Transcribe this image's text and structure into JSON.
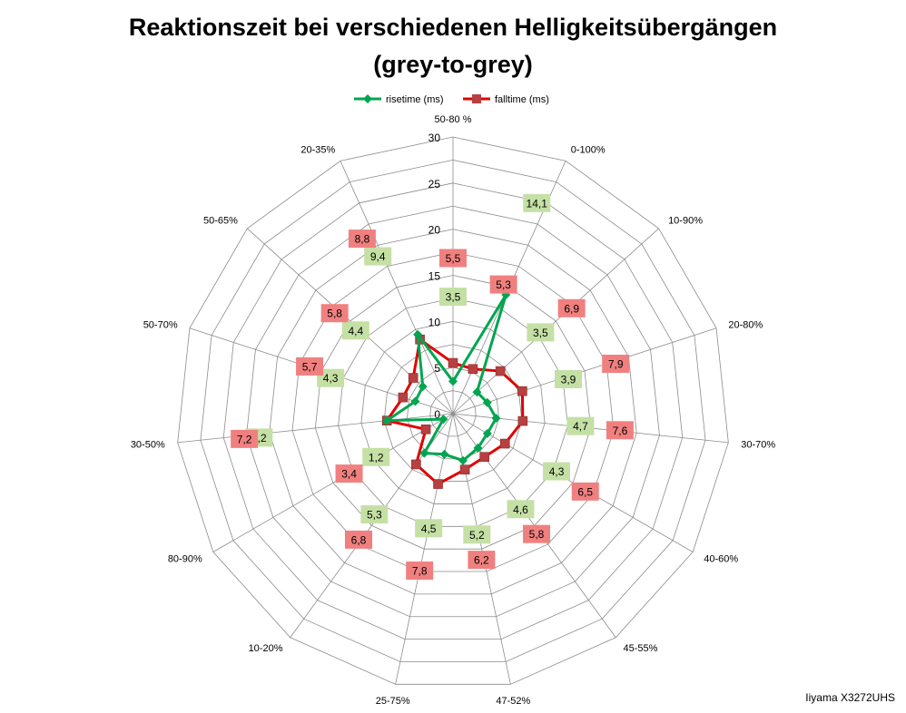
{
  "chart_data": {
    "type": "radar",
    "title": "Reaktionszeit bei verschiedenen Helligkeitsübergängen (grey-to-grey)",
    "title_line1": "Reaktionszeit bei verschiedenen Helligkeitsübergängen",
    "title_line2": "(grey-to-grey)",
    "categories": [
      "50-80 %",
      "0-100%",
      "10-90%",
      "20-80%",
      "30-70%",
      "40-60%",
      "45-55%",
      "47-52%",
      "25-75%",
      "10-20%",
      "80-90%",
      "30-50%",
      "50-70%",
      "50-65%",
      "20-35%"
    ],
    "rlim": [
      0,
      30
    ],
    "r_ticks": [
      0,
      5,
      10,
      15,
      20,
      25,
      30
    ],
    "r_tick_labels": [
      "0",
      "5",
      "10",
      "15",
      "20",
      "25",
      "30"
    ],
    "series": [
      {
        "name": "risetime (ms)",
        "color": "#00a550",
        "marker": "diamond",
        "values": [
          3.5,
          14.1,
          3.5,
          3.9,
          4.7,
          4.3,
          4.6,
          5.2,
          4.5,
          5.3,
          1.2,
          7.2,
          4.3,
          4.4,
          9.4
        ],
        "labels": [
          "3,5",
          "14,1",
          "3,5",
          "3,9",
          "4,7",
          "4,3",
          "4,6",
          "5,2",
          "4,5",
          "5,3",
          "1,2",
          "7,2",
          "4,3",
          "4,4",
          "9,4"
        ],
        "label_bg": "#c5e0a5"
      },
      {
        "name": "falltime (ms)",
        "color": "#e00000",
        "marker": "square",
        "values": [
          5.5,
          5.3,
          6.9,
          7.9,
          7.6,
          6.5,
          5.8,
          6.2,
          7.8,
          6.8,
          3.4,
          7.2,
          5.7,
          5.8,
          8.8
        ],
        "labels": [
          "5,5",
          "5,3",
          "6,9",
          "7,9",
          "7,6",
          "6,5",
          "5,8",
          "6,2",
          "7,8",
          "6,8",
          "3,4",
          "7,2",
          "5,7",
          "5,8",
          "8,8"
        ],
        "label_bg": "#f08080"
      }
    ],
    "grid": true,
    "legend_position": "top"
  },
  "credit": "Iiyama X3272UHS"
}
